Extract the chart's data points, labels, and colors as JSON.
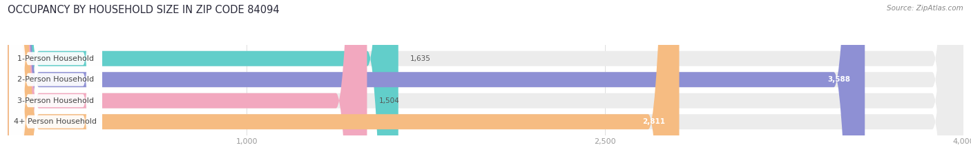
{
  "title": "OCCUPANCY BY HOUSEHOLD SIZE IN ZIP CODE 84094",
  "source": "Source: ZipAtlas.com",
  "categories": [
    "1-Person Household",
    "2-Person Household",
    "3-Person Household",
    "4+ Person Household"
  ],
  "values": [
    1635,
    3588,
    1504,
    2811
  ],
  "bar_colors": [
    "#62ceca",
    "#8e90d4",
    "#f2a8bf",
    "#f6bc82"
  ],
  "bg_colors": [
    "#ebebeb",
    "#ebebeb",
    "#ebebeb",
    "#ebebeb"
  ],
  "xlim": [
    0,
    4000
  ],
  "xticks": [
    1000,
    2500,
    4000
  ],
  "figsize": [
    14.06,
    2.33
  ],
  "dpi": 100,
  "bar_height": 0.72,
  "bar_gap": 0.28,
  "title_fontsize": 10.5,
  "label_fontsize": 8,
  "value_fontsize": 7.5,
  "source_fontsize": 7.5,
  "tick_fontsize": 8
}
